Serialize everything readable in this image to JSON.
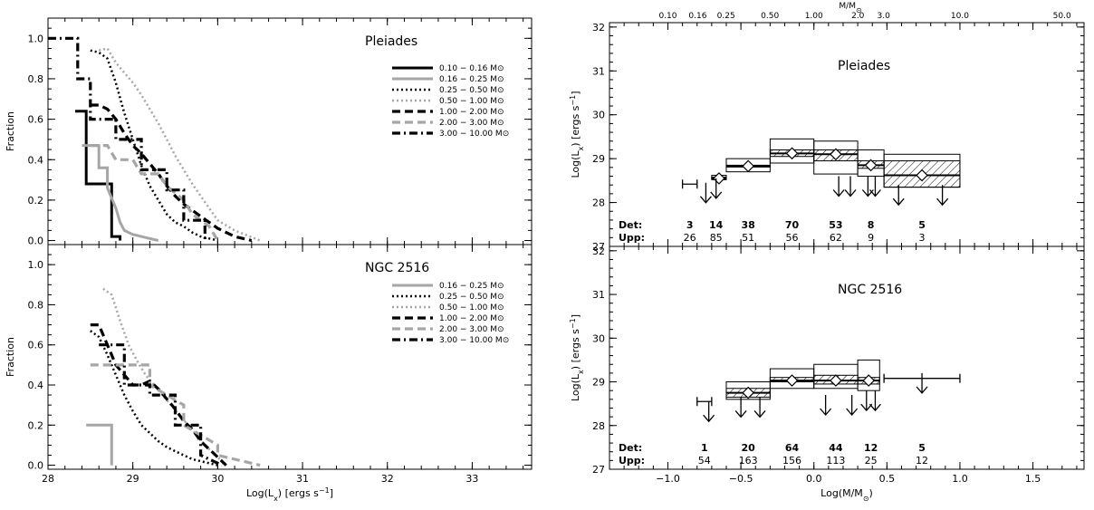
{
  "chart_data": [
    {
      "id": "left-top",
      "type": "line",
      "subtype": "cumulative-step",
      "title": "Pleiades",
      "xlabel": "Log(L_x) [ergs s^-1]",
      "ylabel": "Fraction",
      "xlim": [
        28,
        33.7
      ],
      "ylim": [
        -0.02,
        1.1
      ],
      "xticks": [
        "28",
        "29",
        "30",
        "31",
        "32",
        "33"
      ],
      "yticks": [
        "0.0",
        "0.2",
        "0.4",
        "0.6",
        "0.8",
        "1.0"
      ],
      "legend_position": "right",
      "series": [
        {
          "name": "0.10 − 0.16 M⊙",
          "color": "#000000",
          "dash": "solid",
          "x": [
            28.32,
            28.45,
            28.45,
            28.75,
            28.75,
            28.85,
            28.85
          ],
          "y": [
            0.64,
            0.64,
            0.28,
            0.28,
            0.02,
            0.02,
            0.0
          ]
        },
        {
          "name": "0.16 − 0.25 M⊙",
          "color": "#a6a6a6",
          "dash": "solid",
          "x": [
            28.4,
            28.6,
            28.6,
            28.7,
            28.7,
            28.8,
            28.85,
            28.9,
            29.0,
            29.2,
            29.3
          ],
          "y": [
            0.47,
            0.47,
            0.36,
            0.36,
            0.26,
            0.16,
            0.09,
            0.05,
            0.03,
            0.01,
            0.0
          ]
        },
        {
          "name": "0.25 − 0.50 M⊙",
          "color": "#000000",
          "dash": "dot",
          "x": [
            28.5,
            28.6,
            28.7,
            28.8,
            28.9,
            29.0,
            29.1,
            29.2,
            29.3,
            29.4,
            29.5,
            29.6,
            29.7,
            29.8,
            30.0
          ],
          "y": [
            0.94,
            0.93,
            0.9,
            0.78,
            0.63,
            0.5,
            0.37,
            0.27,
            0.2,
            0.13,
            0.09,
            0.07,
            0.04,
            0.02,
            0.0
          ]
        },
        {
          "name": "0.50 − 1.00 M⊙",
          "color": "#a6a6a6",
          "dash": "dot",
          "x": [
            28.6,
            28.7,
            28.8,
            28.9,
            29.0,
            29.1,
            29.2,
            29.3,
            29.4,
            29.5,
            29.6,
            29.7,
            29.8,
            29.9,
            30.0,
            30.2,
            30.5
          ],
          "y": [
            0.94,
            0.95,
            0.88,
            0.83,
            0.78,
            0.72,
            0.65,
            0.58,
            0.5,
            0.42,
            0.35,
            0.28,
            0.22,
            0.16,
            0.1,
            0.05,
            0.0
          ]
        },
        {
          "name": "1.00 − 2.00 M⊙",
          "color": "#000000",
          "dash": "dash",
          "x": [
            28.5,
            28.6,
            28.7,
            28.8,
            28.9,
            29.0,
            29.1,
            29.2,
            29.3,
            29.4,
            29.5,
            29.6,
            29.7,
            29.8,
            29.9,
            30.0,
            30.2,
            30.4
          ],
          "y": [
            0.67,
            0.67,
            0.65,
            0.6,
            0.53,
            0.47,
            0.43,
            0.38,
            0.33,
            0.27,
            0.22,
            0.18,
            0.15,
            0.12,
            0.09,
            0.06,
            0.02,
            0.0
          ]
        },
        {
          "name": "2.00 − 3.00 M⊙",
          "color": "#a6a6a6",
          "dash": "dash",
          "x": [
            28.5,
            28.7,
            28.8,
            29.0,
            29.1,
            29.3,
            29.4,
            29.6,
            29.7,
            29.9,
            30.0
          ],
          "y": [
            0.47,
            0.47,
            0.4,
            0.4,
            0.33,
            0.33,
            0.27,
            0.2,
            0.13,
            0.07,
            0.0
          ]
        },
        {
          "name": "3.00 − 10.00 M⊙",
          "color": "#000000",
          "dash": "dashdot",
          "x": [
            28.0,
            28.35,
            28.35,
            28.5,
            28.5,
            28.8,
            28.8,
            29.1,
            29.1,
            29.4,
            29.4,
            29.6,
            29.6,
            29.85,
            29.85
          ],
          "y": [
            1.0,
            1.0,
            0.8,
            0.8,
            0.6,
            0.6,
            0.5,
            0.5,
            0.35,
            0.35,
            0.25,
            0.25,
            0.1,
            0.1,
            0.0
          ]
        }
      ]
    },
    {
      "id": "left-bottom",
      "type": "line",
      "subtype": "cumulative-step",
      "title": "NGC 2516",
      "xlabel": "Log(L_x) [ergs s^-1]",
      "ylabel": "Fraction",
      "xlim": [
        28,
        33.7
      ],
      "ylim": [
        -0.02,
        1.1
      ],
      "xticks": [
        "28",
        "29",
        "30",
        "31",
        "32",
        "33"
      ],
      "yticks": [
        "0.0",
        "0.2",
        "0.4",
        "0.6",
        "0.8",
        "1.0"
      ],
      "legend_position": "right",
      "series": [
        {
          "name": "0.16 − 0.25 M⊙",
          "color": "#a6a6a6",
          "dash": "solid",
          "x": [
            28.45,
            28.75,
            28.75,
            28.75
          ],
          "y": [
            0.2,
            0.2,
            0.2,
            0.0
          ]
        },
        {
          "name": "0.25 − 0.50 M⊙",
          "color": "#000000",
          "dash": "dot",
          "x": [
            28.5,
            28.6,
            28.7,
            28.8,
            28.9,
            29.0,
            29.1,
            29.2,
            29.3,
            29.4,
            29.5,
            29.6,
            29.7,
            29.8,
            30.0
          ],
          "y": [
            0.67,
            0.64,
            0.55,
            0.45,
            0.35,
            0.27,
            0.2,
            0.16,
            0.12,
            0.09,
            0.07,
            0.05,
            0.03,
            0.02,
            0.0
          ]
        },
        {
          "name": "0.50 − 1.00 M⊙",
          "color": "#a6a6a6",
          "dash": "dot",
          "x": [
            28.65,
            28.75,
            28.85,
            28.95,
            29.05,
            29.15,
            29.25,
            29.35,
            29.45,
            29.55,
            29.65,
            29.75,
            29.85,
            29.95,
            30.1
          ],
          "y": [
            0.88,
            0.85,
            0.72,
            0.6,
            0.52,
            0.45,
            0.4,
            0.35,
            0.3,
            0.25,
            0.2,
            0.15,
            0.1,
            0.06,
            0.0
          ]
        },
        {
          "name": "1.00 − 2.00 M⊙",
          "color": "#000000",
          "dash": "dash",
          "x": [
            28.5,
            28.6,
            28.7,
            28.8,
            28.9,
            29.0,
            29.1,
            29.2,
            29.3,
            29.4,
            29.5,
            29.6,
            29.7,
            29.8,
            29.9,
            30.0,
            30.1
          ],
          "y": [
            0.7,
            0.7,
            0.6,
            0.5,
            0.45,
            0.4,
            0.4,
            0.42,
            0.38,
            0.33,
            0.28,
            0.22,
            0.18,
            0.12,
            0.08,
            0.04,
            0.0
          ]
        },
        {
          "name": "2.00 − 3.00 M⊙",
          "color": "#a6a6a6",
          "dash": "dash",
          "x": [
            28.5,
            28.8,
            28.8,
            29.2,
            29.2,
            29.6,
            29.6,
            30.0,
            30.0,
            30.5
          ],
          "y": [
            0.5,
            0.5,
            0.5,
            0.5,
            0.4,
            0.3,
            0.2,
            0.1,
            0.05,
            0.0
          ]
        },
        {
          "name": "3.00 − 10.00 M⊙",
          "color": "#000000",
          "dash": "dashdot",
          "x": [
            28.6,
            28.9,
            28.9,
            29.2,
            29.2,
            29.5,
            29.5,
            29.8,
            29.8,
            30.05
          ],
          "y": [
            0.6,
            0.6,
            0.4,
            0.4,
            0.35,
            0.35,
            0.2,
            0.2,
            0.05,
            0.0
          ]
        }
      ]
    },
    {
      "id": "right-top",
      "type": "box",
      "title": "Pleiades",
      "xlabel": "Log(M/M⊙)",
      "ylabel": "Log(L_x) [ergs s^-1]",
      "top_axis_label": "M/M⊙",
      "top_ticks": [
        "0.10",
        "0.16",
        "0.25",
        "0.50",
        "1.00",
        "2.0",
        "3.0",
        "10.0",
        "50.0"
      ],
      "top_tick_values": [
        0.1,
        0.16,
        0.25,
        0.5,
        1.0,
        2.0,
        3.0,
        10.0,
        50.0
      ],
      "xlim": [
        -1.4,
        1.85
      ],
      "ylim": [
        27,
        32.1
      ],
      "xticks": [
        "−1.0",
        "−0.5",
        "0.0",
        "0.5",
        "1.0",
        "1.5"
      ],
      "yticks": [
        "27",
        "28",
        "29",
        "30",
        "31",
        "32"
      ],
      "bins": [
        {
          "xlo": -0.9,
          "xhi": -0.8,
          "outer_lo": 28.4,
          "outer_hi": 28.45,
          "inner_lo": 28.4,
          "inner_hi": 28.45,
          "median": 28.42,
          "upper_limit_x": [
            -0.74
          ],
          "upper_limit_y": 28.45,
          "marker": "errorbar"
        },
        {
          "xlo": -0.7,
          "xhi": -0.6,
          "outer_lo": 28.52,
          "outer_hi": 28.62,
          "inner_lo": 28.54,
          "inner_hi": 28.58,
          "median": 28.55,
          "upper_limit_x": [
            -0.67
          ],
          "upper_limit_y": 28.55,
          "marker": "diamond"
        },
        {
          "xlo": -0.6,
          "xhi": -0.3,
          "outer_lo": 28.7,
          "outer_hi": 29.0,
          "inner_lo": 28.82,
          "inner_hi": 28.85,
          "median": 28.83,
          "upper_limit_x": [],
          "upper_limit_y": 28.8,
          "marker": "diamond"
        },
        {
          "xlo": -0.3,
          "xhi": 0.0,
          "outer_lo": 28.9,
          "outer_hi": 29.45,
          "inner_lo": 29.05,
          "inner_hi": 29.2,
          "median": 29.12,
          "upper_limit_x": [],
          "upper_limit_y": 29.0,
          "marker": "diamond"
        },
        {
          "xlo": 0.0,
          "xhi": 0.3,
          "outer_lo": 28.65,
          "outer_hi": 29.4,
          "inner_lo": 28.95,
          "inner_hi": 29.2,
          "median": 29.1,
          "upper_limit_x": [
            0.17,
            0.25
          ],
          "upper_limit_y": 28.6,
          "marker": "diamond"
        },
        {
          "xlo": 0.3,
          "xhi": 0.48,
          "outer_lo": 28.6,
          "outer_hi": 29.2,
          "inner_lo": 28.78,
          "inner_hi": 28.95,
          "median": 28.85,
          "upper_limit_x": [
            0.37,
            0.42
          ],
          "upper_limit_y": 28.6,
          "marker": "diamond"
        },
        {
          "xlo": 0.48,
          "xhi": 1.0,
          "outer_lo": 28.35,
          "outer_hi": 29.1,
          "inner_lo": 28.35,
          "inner_hi": 28.95,
          "median": 28.62,
          "upper_limit_x": [
            0.58,
            0.88
          ],
          "upper_limit_y": 28.4,
          "marker": "diamond"
        }
      ],
      "det_label": "Det:",
      "upp_label": "Upp:",
      "det_counts": [
        "3",
        "14",
        "38",
        "70",
        "53",
        "8",
        "5"
      ],
      "upp_counts": [
        "26",
        "85",
        "51",
        "56",
        "62",
        "9",
        "3"
      ],
      "count_x": [
        -0.85,
        -0.67,
        -0.45,
        -0.15,
        0.15,
        0.39,
        0.74
      ]
    },
    {
      "id": "right-bottom",
      "type": "box",
      "title": "NGC 2516",
      "xlabel": "Log(M/M⊙)",
      "ylabel": "Log(L_x) [ergs s^-1]",
      "xlim": [
        -1.4,
        1.85
      ],
      "ylim": [
        27,
        32.1
      ],
      "xticks": [
        "−1.0",
        "−0.5",
        "0.0",
        "0.5",
        "1.0",
        "1.5"
      ],
      "yticks": [
        "27",
        "28",
        "29",
        "30",
        "31",
        "32"
      ],
      "bins": [
        {
          "xlo": -0.8,
          "xhi": -0.7,
          "outer_lo": 28.52,
          "outer_hi": 28.58,
          "inner_lo": 28.52,
          "inner_hi": 28.56,
          "median": 28.55,
          "upper_limit_x": [
            -0.72
          ],
          "upper_limit_y": 28.55,
          "marker": "errorbar"
        },
        {
          "xlo": -0.6,
          "xhi": -0.3,
          "outer_lo": 28.6,
          "outer_hi": 29.0,
          "inner_lo": 28.65,
          "inner_hi": 28.85,
          "median": 28.75,
          "upper_limit_x": [
            -0.5,
            -0.37
          ],
          "upper_limit_y": 28.65,
          "marker": "diamond"
        },
        {
          "xlo": -0.3,
          "xhi": 0.0,
          "outer_lo": 28.85,
          "outer_hi": 29.3,
          "inner_lo": 29.0,
          "inner_hi": 29.1,
          "median": 29.03,
          "upper_limit_x": [],
          "upper_limit_y": 28.9,
          "marker": "diamond"
        },
        {
          "xlo": 0.0,
          "xhi": 0.3,
          "outer_lo": 28.85,
          "outer_hi": 29.4,
          "inner_lo": 28.95,
          "inner_hi": 29.15,
          "median": 29.03,
          "upper_limit_x": [
            0.08,
            0.26
          ],
          "upper_limit_y": 28.7,
          "marker": "diamond"
        },
        {
          "xlo": 0.3,
          "xhi": 0.45,
          "outer_lo": 28.8,
          "outer_hi": 29.5,
          "inner_lo": 28.95,
          "inner_hi": 29.1,
          "median": 29.03,
          "upper_limit_x": [
            0.36,
            0.42
          ],
          "upper_limit_y": 28.8,
          "marker": "diamond"
        },
        {
          "xlo": 0.48,
          "xhi": 1.0,
          "outer_lo": 29.08,
          "outer_hi": 29.08,
          "inner_lo": 29.08,
          "inner_hi": 29.08,
          "median": 29.08,
          "upper_limit_x": [
            0.74
          ],
          "upper_limit_y": 29.2,
          "marker": "errorbar"
        }
      ],
      "det_label": "Det:",
      "upp_label": "Upp:",
      "det_counts": [
        "1",
        "20",
        "64",
        "44",
        "12",
        "5"
      ],
      "upp_counts": [
        "54",
        "163",
        "156",
        "113",
        "25",
        "12"
      ],
      "count_x": [
        -0.75,
        -0.45,
        -0.15,
        0.15,
        0.39,
        0.74
      ]
    }
  ]
}
